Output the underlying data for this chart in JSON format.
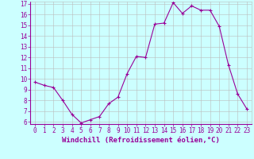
{
  "x": [
    0,
    1,
    2,
    3,
    4,
    5,
    6,
    7,
    8,
    9,
    10,
    11,
    12,
    13,
    14,
    15,
    16,
    17,
    18,
    19,
    20,
    21,
    22,
    23
  ],
  "y": [
    9.7,
    9.4,
    9.2,
    8.0,
    6.7,
    5.9,
    6.2,
    6.5,
    7.7,
    8.3,
    10.5,
    12.1,
    12.0,
    15.1,
    15.2,
    17.1,
    16.1,
    16.8,
    16.4,
    16.4,
    14.9,
    11.3,
    8.6,
    7.2
  ],
  "line_color": "#990099",
  "marker": "+",
  "marker_size": 3,
  "marker_lw": 0.8,
  "line_width": 0.8,
  "bg_color": "#ccffff",
  "grid_color": "#bbbbbb",
  "xlabel": "Windchill (Refroidissement éolien,°C)",
  "ylim_min": 6,
  "ylim_max": 17,
  "xlim_min": 0,
  "xlim_max": 23,
  "yticks": [
    6,
    7,
    8,
    9,
    10,
    11,
    12,
    13,
    14,
    15,
    16,
    17
  ],
  "xticks": [
    0,
    1,
    2,
    3,
    4,
    5,
    6,
    7,
    8,
    9,
    10,
    11,
    12,
    13,
    14,
    15,
    16,
    17,
    18,
    19,
    20,
    21,
    22,
    23
  ],
  "tick_color": "#990099",
  "tick_fontsize": 5.5,
  "xlabel_fontsize": 6.5,
  "xlabel_color": "#990099"
}
